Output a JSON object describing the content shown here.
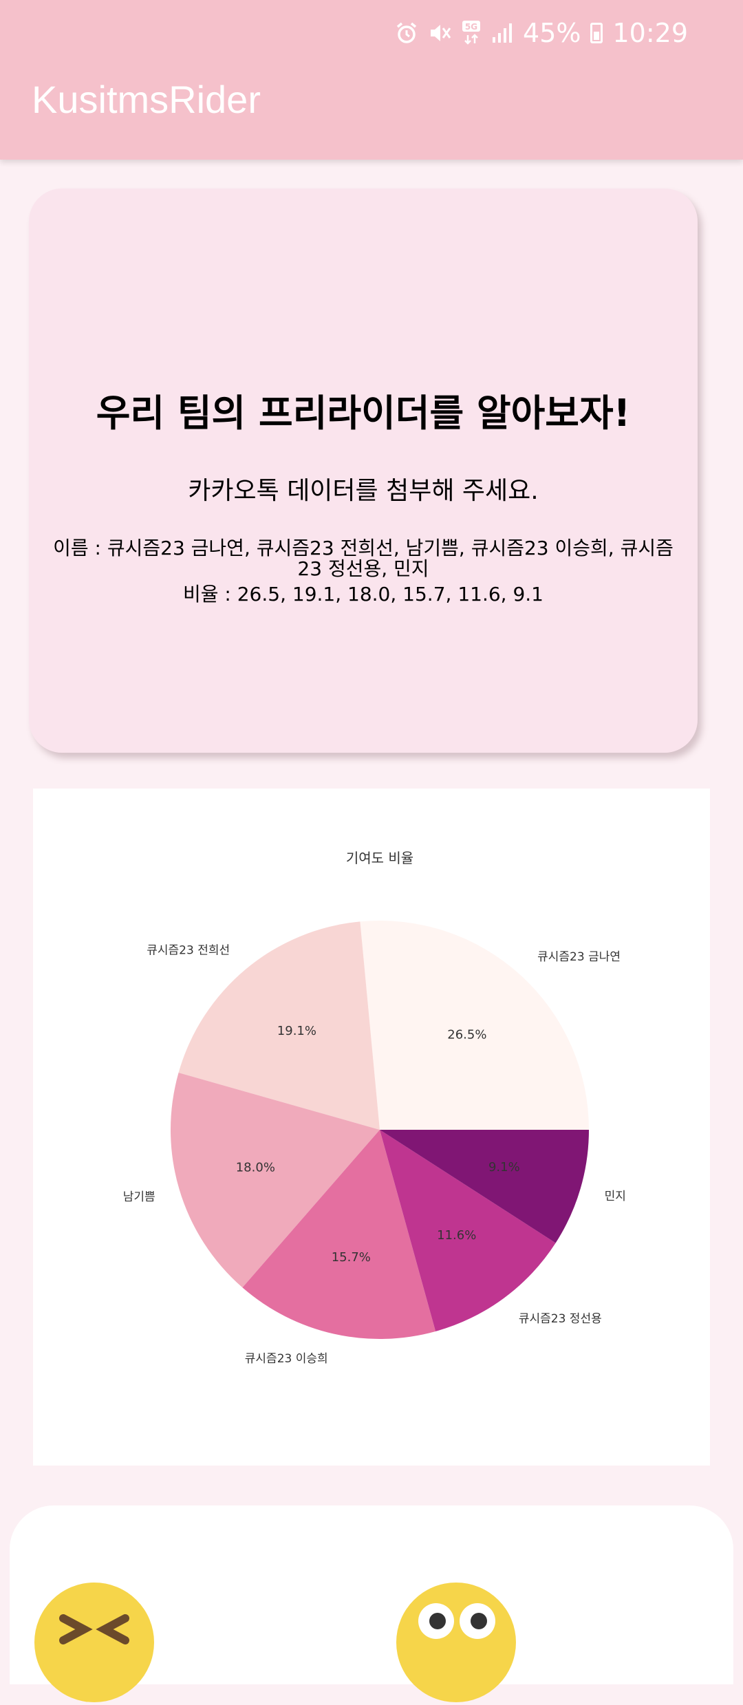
{
  "app": {
    "title": "KusitmsRider"
  },
  "status_bar": {
    "icons": [
      "alarm-icon",
      "mute-icon",
      "5g-icon",
      "signal-icon"
    ],
    "battery": "45%",
    "time": "10:29"
  },
  "intro": {
    "title": "우리 팀의 프리라이더를 알아보자!",
    "subtitle": "카카오톡 데이터를 첨부해 주세요.",
    "names_line": "이름 : 큐시즘23 금나연, 큐시즘23 전희선, 남기쁨, 큐시즘23 이승희, 큐시즘23 정선용, 민지",
    "ratio_line": "비율 : 26.5, 19.1, 18.0, 15.7, 11.6, 9.1"
  },
  "chart_data": {
    "type": "pie",
    "title": "기여도 비율",
    "categories": [
      "큐시즘23 금나연",
      "큐시즘23 전희선",
      "남기쁨",
      "큐시즘23 이승희",
      "큐시즘23 정선용",
      "민지"
    ],
    "values": [
      26.5,
      19.1,
      18.0,
      15.7,
      11.6,
      9.1
    ],
    "value_labels": [
      "26.5%",
      "19.1%",
      "18.0%",
      "15.7%",
      "11.6%",
      "9.1%"
    ],
    "colors": [
      "#fff5f2",
      "#f8d6d4",
      "#f0aabb",
      "#e46fa0",
      "#bf3590",
      "#801674"
    ]
  }
}
